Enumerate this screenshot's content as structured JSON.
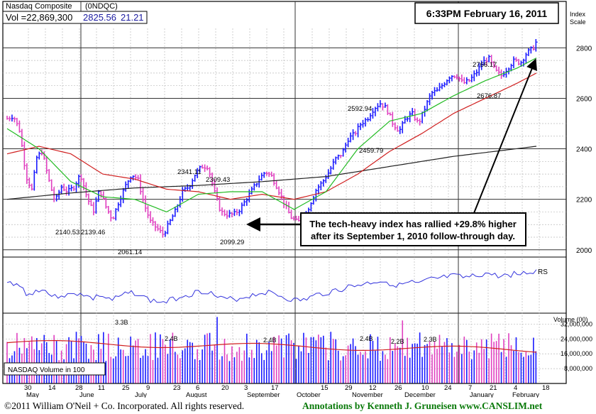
{
  "header": {
    "index_name": "Nasdaq Composite",
    "symbol": "(0NDQC)",
    "volume": "Vol =22,869,300",
    "last": "2825.56",
    "change": "21.21",
    "timestamp": "6:33PM February 16, 2011"
  },
  "scale": {
    "label_line1": "Index",
    "label_line2": "Scale",
    "ticks": [
      2000,
      2200,
      2400,
      2600,
      2800
    ]
  },
  "annotation": {
    "line1": "The tech-heavy index has rallied +29.8% higher",
    "line2": "after its September 1, 2010 follow-through day."
  },
  "rs": {
    "label": "RS"
  },
  "volume": {
    "label": "NASDAQ Volume in 100",
    "axis_title": "Volume (00)",
    "ticks": [
      "32,000,000",
      "24,000,000",
      "16,000,000",
      "8,000,000"
    ],
    "tick_values": [
      32000000,
      24000000,
      16000000,
      8000000
    ],
    "peak_labels": [
      "3.3B",
      "2.4B",
      "2.4B",
      "2.4B",
      "2.2B",
      "2.3B"
    ]
  },
  "footer": {
    "copyright": "©2011 William O'Neil + Co. Incorporated. All rights reserved.",
    "annotations": "Annotations by Kenneth J. Gruneisen  www.CANSLIM.net"
  },
  "colors": {
    "up": "#1a1aff",
    "down": "#e040c0",
    "ma50": "#22bb22",
    "ma200": "#222222",
    "ma_red": "#d02020",
    "rs": "#3333dd",
    "vol_ma": "#d02020"
  },
  "chart_data": {
    "type": "ohlc",
    "title": "Nasdaq Composite",
    "ylabel": "Index Scale",
    "ylim": [
      1960,
      2860
    ],
    "x_tick_labels": [
      "30",
      "May",
      "14",
      "June",
      "28",
      "11",
      "25",
      "July",
      "9",
      "23",
      "August",
      "6",
      "20",
      "3",
      "September",
      "17",
      "October",
      "15",
      "29",
      "November",
      "12",
      "26",
      "December",
      "10",
      "24",
      "7",
      "January",
      "21",
      "4",
      "February",
      "18"
    ],
    "price_labels": [
      {
        "text": "2341.11",
        "value": 2341.11
      },
      {
        "text": "2309.43",
        "value": 2309.43
      },
      {
        "text": "2140.53",
        "value": 2140.53
      },
      {
        "text": "2139.46",
        "value": 2139.46
      },
      {
        "text": "2061.14",
        "value": 2061.14
      },
      {
        "text": "2099.29",
        "value": 2099.29
      },
      {
        "text": "2592.94",
        "value": 2592.94
      },
      {
        "text": "2459.79",
        "value": 2459.79
      },
      {
        "text": "2766.17",
        "value": 2766.17
      },
      {
        "text": "2676.87",
        "value": 2676.87
      }
    ],
    "waypoints": [
      [
        0,
        2520
      ],
      [
        4,
        2530
      ],
      [
        8,
        2470
      ],
      [
        12,
        2290
      ],
      [
        16,
        2230
      ],
      [
        18,
        2360
      ],
      [
        22,
        2390
      ],
      [
        26,
        2280
      ],
      [
        30,
        2190
      ],
      [
        34,
        2250
      ],
      [
        38,
        2230
      ],
      [
        42,
        2250
      ],
      [
        46,
        2300
      ],
      [
        50,
        2210
      ],
      [
        54,
        2150
      ],
      [
        58,
        2240
      ],
      [
        62,
        2170
      ],
      [
        66,
        2120
      ],
      [
        70,
        2190
      ],
      [
        74,
        2250
      ],
      [
        78,
        2300
      ],
      [
        82,
        2280
      ],
      [
        86,
        2180
      ],
      [
        90,
        2110
      ],
      [
        94,
        2085
      ],
      [
        98,
        2060
      ],
      [
        102,
        2110
      ],
      [
        106,
        2160
      ],
      [
        110,
        2230
      ],
      [
        114,
        2250
      ],
      [
        118,
        2300
      ],
      [
        122,
        2330
      ],
      [
        126,
        2330
      ],
      [
        130,
        2230
      ],
      [
        134,
        2150
      ],
      [
        138,
        2140
      ],
      [
        142,
        2140
      ],
      [
        146,
        2160
      ],
      [
        150,
        2200
      ],
      [
        154,
        2240
      ],
      [
        158,
        2280
      ],
      [
        162,
        2310
      ],
      [
        166,
        2290
      ],
      [
        170,
        2240
      ],
      [
        174,
        2180
      ],
      [
        178,
        2130
      ],
      [
        182,
        2110
      ],
      [
        186,
        2120
      ],
      [
        190,
        2180
      ],
      [
        194,
        2240
      ],
      [
        198,
        2270
      ],
      [
        202,
        2310
      ],
      [
        206,
        2360
      ],
      [
        210,
        2380
      ],
      [
        214,
        2440
      ],
      [
        218,
        2460
      ],
      [
        222,
        2500
      ],
      [
        226,
        2520
      ],
      [
        230,
        2560
      ],
      [
        234,
        2580
      ],
      [
        238,
        2560
      ],
      [
        242,
        2500
      ],
      [
        246,
        2470
      ],
      [
        250,
        2520
      ],
      [
        254,
        2540
      ],
      [
        258,
        2500
      ],
      [
        262,
        2560
      ],
      [
        266,
        2620
      ],
      [
        270,
        2630
      ],
      [
        274,
        2660
      ],
      [
        278,
        2690
      ],
      [
        282,
        2690
      ],
      [
        286,
        2660
      ],
      [
        290,
        2670
      ],
      [
        294,
        2700
      ],
      [
        298,
        2740
      ],
      [
        302,
        2760
      ],
      [
        306,
        2710
      ],
      [
        310,
        2690
      ],
      [
        314,
        2720
      ],
      [
        318,
        2750
      ],
      [
        322,
        2740
      ],
      [
        326,
        2780
      ],
      [
        330,
        2800
      ],
      [
        332,
        2825
      ]
    ],
    "ma50": [
      [
        0,
        2480
      ],
      [
        20,
        2400
      ],
      [
        40,
        2270
      ],
      [
        60,
        2210
      ],
      [
        80,
        2200
      ],
      [
        100,
        2150
      ],
      [
        120,
        2220
      ],
      [
        140,
        2230
      ],
      [
        160,
        2230
      ],
      [
        180,
        2160
      ],
      [
        200,
        2230
      ],
      [
        220,
        2400
      ],
      [
        240,
        2510
      ],
      [
        260,
        2540
      ],
      [
        280,
        2610
      ],
      [
        300,
        2670
      ],
      [
        320,
        2720
      ],
      [
        332,
        2760
      ]
    ],
    "ma_red": [
      [
        0,
        2380
      ],
      [
        20,
        2410
      ],
      [
        40,
        2380
      ],
      [
        60,
        2300
      ],
      [
        80,
        2280
      ],
      [
        100,
        2240
      ],
      [
        120,
        2230
      ],
      [
        140,
        2200
      ],
      [
        160,
        2220
      ],
      [
        180,
        2200
      ],
      [
        200,
        2230
      ],
      [
        220,
        2300
      ],
      [
        240,
        2390
      ],
      [
        260,
        2460
      ],
      [
        280,
        2540
      ],
      [
        300,
        2600
      ],
      [
        320,
        2660
      ],
      [
        332,
        2700
      ]
    ],
    "ma200": [
      [
        0,
        2200
      ],
      [
        40,
        2225
      ],
      [
        80,
        2245
      ],
      [
        120,
        2255
      ],
      [
        160,
        2270
      ],
      [
        200,
        2290
      ],
      [
        240,
        2330
      ],
      [
        280,
        2370
      ],
      [
        332,
        2410
      ]
    ],
    "volume_values_millions_approx": "bars between ~8M and ~36M (hundreds)"
  }
}
